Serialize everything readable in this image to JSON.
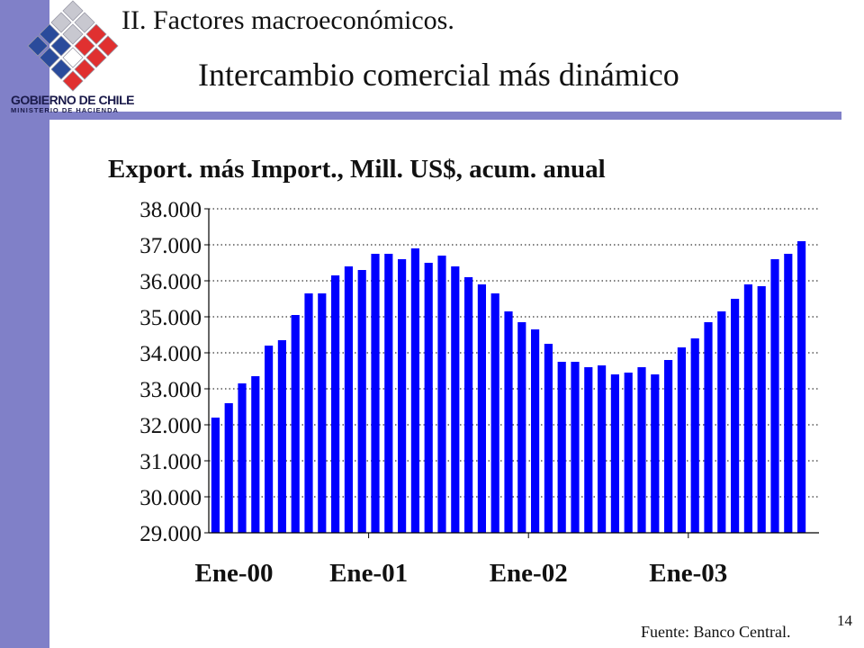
{
  "slide": {
    "section_title": "II. Factores macroeconómicos.",
    "title": "Intercambio comercial más dinámico",
    "source": "Fuente: Banco Central.",
    "page_number": "14"
  },
  "logo": {
    "name": "GOBIERNO DE CHILE",
    "subtitle": "MINISTERIO DE HACIENDA"
  },
  "colors": {
    "bar": "#0000ff",
    "accent": "#8080c8",
    "logo_blue": "#2a4b9b",
    "logo_red": "#e03030"
  },
  "chart_data": {
    "type": "bar",
    "title": "Export. más Import., Mill. US$, acum. anual",
    "xlabel": "",
    "ylabel": "",
    "ylim": [
      29000,
      38000
    ],
    "yticks": [
      29000,
      30000,
      31000,
      32000,
      33000,
      34000,
      35000,
      36000,
      37000,
      38000
    ],
    "ytick_labels": [
      "29.000",
      "30.000",
      "31.000",
      "32.000",
      "33.000",
      "34.000",
      "35.000",
      "36.000",
      "37.000",
      "38.000"
    ],
    "xtick_labels": [
      {
        "index": 0,
        "label": "Ene-00"
      },
      {
        "index": 12,
        "label": "Ene-01"
      },
      {
        "index": 24,
        "label": "Ene-02"
      },
      {
        "index": 36,
        "label": "Ene-03"
      }
    ],
    "grid": "horizontal-dotted",
    "legend": "none",
    "values": [
      32200,
      32600,
      33150,
      33350,
      34200,
      34350,
      35050,
      35650,
      35650,
      36150,
      36400,
      36300,
      36750,
      36750,
      36600,
      36900,
      36500,
      36700,
      36400,
      36100,
      35900,
      35650,
      35150,
      34850,
      34650,
      34250,
      33750,
      33750,
      33600,
      33650,
      33400,
      33450,
      33600,
      33400,
      33800,
      34150,
      34400,
      34850,
      35150,
      35500,
      35900,
      35850,
      36600,
      36750,
      37100
    ]
  }
}
